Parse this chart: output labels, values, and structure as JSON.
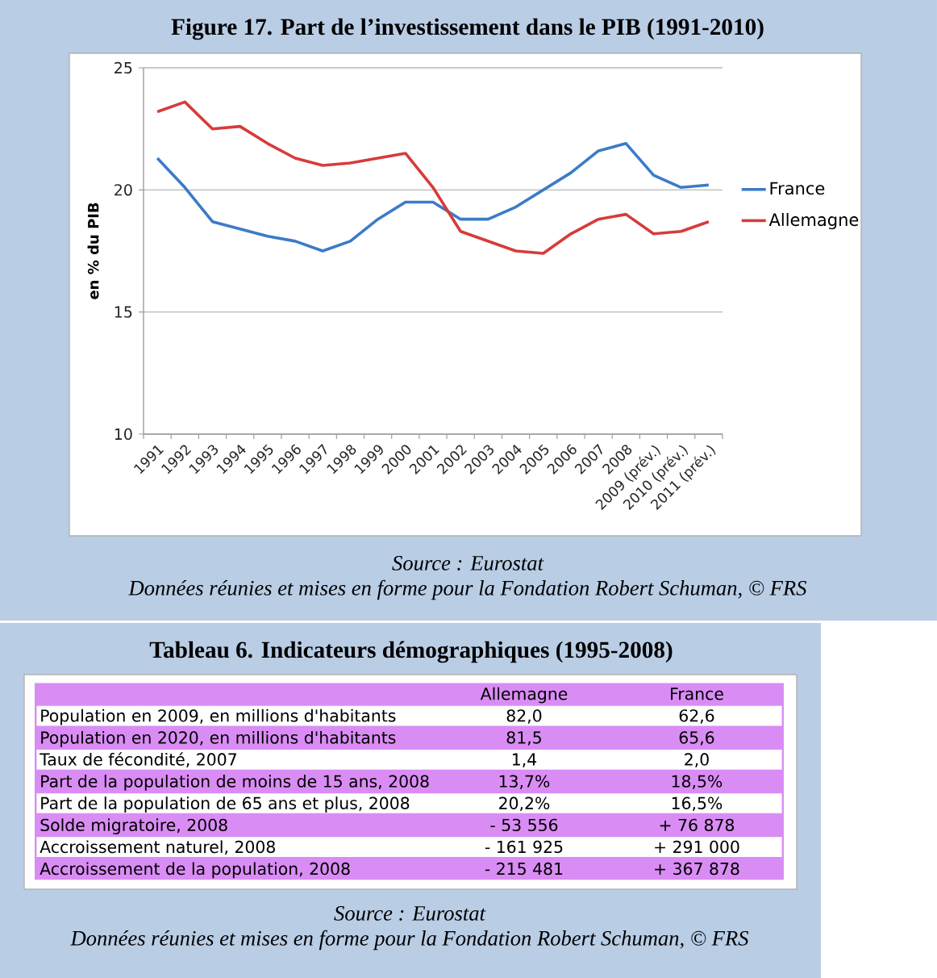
{
  "chart_data": [
    {
      "type": "line",
      "title": "Figure 17. Part de l’investissement dans le PIB (1991-2010)",
      "ylabel": "en % du PIB",
      "categories": [
        "1991",
        "1992",
        "1993",
        "1994",
        "1995",
        "1996",
        "1997",
        "1998",
        "1999",
        "2000",
        "2001",
        "2002",
        "2003",
        "2004",
        "2005",
        "2006",
        "2007",
        "2008",
        "2009 (prév.)",
        "2010 (prév.)",
        "2011 (prév.)"
      ],
      "series": [
        {
          "name": "France",
          "color": "#3b7bc8",
          "values": [
            21.3,
            20.1,
            18.7,
            18.4,
            18.1,
            17.9,
            17.5,
            17.9,
            18.8,
            19.5,
            19.5,
            18.8,
            18.8,
            19.3,
            20.0,
            20.7,
            21.6,
            21.9,
            20.6,
            20.1,
            20.2
          ]
        },
        {
          "name": "Allemagne",
          "color": "#d73b3b",
          "values": [
            23.2,
            23.6,
            22.5,
            22.6,
            21.9,
            21.3,
            21.0,
            21.1,
            21.3,
            21.5,
            20.1,
            18.3,
            17.9,
            17.5,
            17.4,
            18.2,
            18.8,
            19.0,
            18.2,
            18.3,
            18.7
          ]
        }
      ],
      "ylim": [
        10,
        25
      ],
      "yticks": [
        10,
        15,
        20,
        25
      ],
      "grid": "y",
      "legend": "right",
      "annotations": [
        "Source : Eurostat",
        "Données réunies et mises en forme pour la Fondation Robert Schuman, © FRS"
      ]
    },
    {
      "type": "other",
      "title": "Tableau 6. Indicateurs démographiques (1995-2008)",
      "annotations": [
        "Allemagne",
        "France",
        "Population en 2009, en millions d'habitants",
        "82,0",
        "62,6",
        "Population en 2020, en millions d'habitants",
        "81,5",
        "65,6",
        "Taux de fécondité, 2007",
        "1,4",
        "2,0",
        "Part de la population de moins de 15 ans, 2008",
        "13,7%",
        "18,5%",
        "Part de la population de 65 ans et plus, 2008",
        "20,2%",
        "16,5%",
        "Solde migratoire, 2008",
        "- 53 556",
        "+ 76 878",
        "Accroissement naturel, 2008",
        "- 161 925",
        "+ 291 000",
        "Accroissement de la population, 2008",
        "- 215 481",
        "+ 367 878",
        "Source : Eurostat",
        "Données réunies et mises en forme pour la Fondation Robert Schuman, © FRS"
      ]
    }
  ]
}
